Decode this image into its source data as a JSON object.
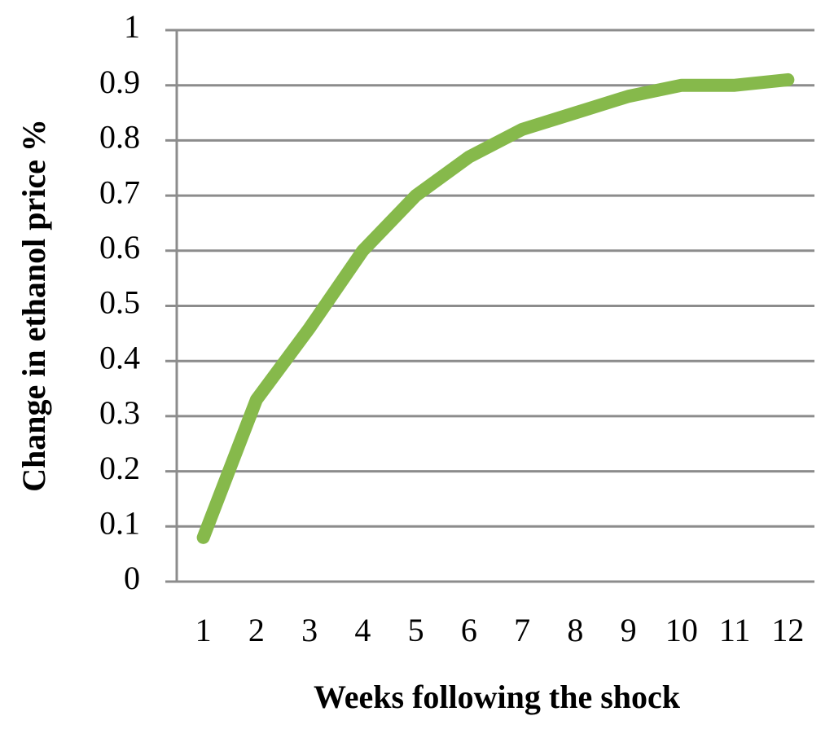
{
  "chart_data": {
    "type": "line",
    "x_label": "Weeks following the shock",
    "y_label": "Change in ethanol price %",
    "categories": [
      "1",
      "2",
      "3",
      "4",
      "5",
      "6",
      "7",
      "8",
      "9",
      "10",
      "11",
      "12"
    ],
    "values": [
      0.08,
      0.33,
      0.46,
      0.6,
      0.7,
      0.77,
      0.82,
      0.85,
      0.88,
      0.9,
      0.9,
      0.91
    ],
    "color": "#86b94b",
    "ylim": [
      0,
      1
    ],
    "yticks": [
      0,
      0.1,
      0.2,
      0.3,
      0.4,
      0.5,
      0.6,
      0.7,
      0.8,
      0.9,
      1
    ],
    "grid": true
  }
}
